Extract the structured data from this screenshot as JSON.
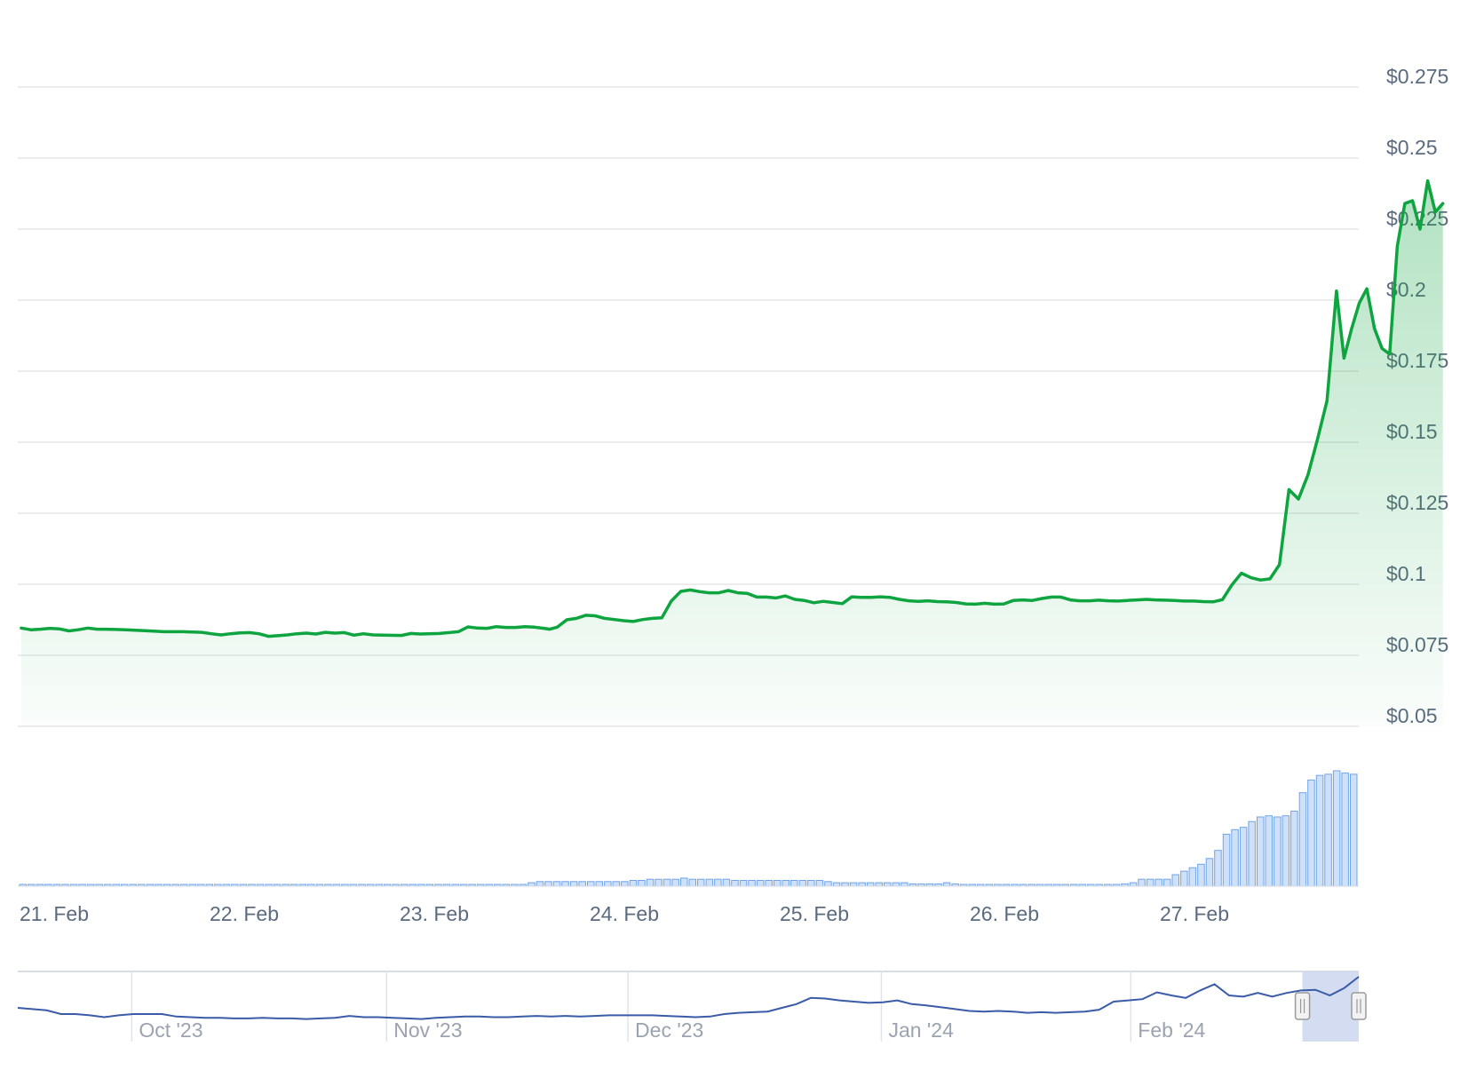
{
  "chart_data": {
    "type": "area",
    "y_axis": {
      "ticks": [
        "$0.275",
        "$0.25",
        "$0.225",
        "$0.2",
        "$0.175",
        "$0.15",
        "$0.125",
        "$0.1",
        "$0.075",
        "$0.05"
      ],
      "tick_values": [
        0.275,
        0.25,
        0.225,
        0.2,
        0.175,
        0.15,
        0.125,
        0.1,
        0.075,
        0.05
      ],
      "range": [
        0.05,
        0.275
      ],
      "position": "right",
      "grid": true
    },
    "x_axis": {
      "ticks": [
        "21. Feb",
        "22. Feb",
        "23. Feb",
        "24. Feb",
        "25. Feb",
        "26. Feb",
        "27. Feb"
      ],
      "tick_values": [
        0,
        1,
        2,
        3,
        4,
        5,
        6
      ],
      "range_days": [
        0,
        7.1
      ]
    },
    "colors": {
      "line": "#0ea43f",
      "area_top": "#0ea43f",
      "volume_fill": "#cfe1f9",
      "volume_stroke": "#6fa4e6",
      "grid": "#e6e6e6",
      "axis_text": "#5b6b7f",
      "navigator_line": "#3a5ba8",
      "navigator_mask": "#ccd6ee"
    },
    "price_series": [
      [
        0.0,
        0.0846
      ],
      [
        0.05,
        0.084
      ],
      [
        0.1,
        0.0842
      ],
      [
        0.15,
        0.0845
      ],
      [
        0.2,
        0.0843
      ],
      [
        0.25,
        0.0836
      ],
      [
        0.3,
        0.084
      ],
      [
        0.35,
        0.0846
      ],
      [
        0.4,
        0.0842
      ],
      [
        0.45,
        0.0842
      ],
      [
        0.55,
        0.084
      ],
      [
        0.65,
        0.0837
      ],
      [
        0.75,
        0.0833
      ],
      [
        0.85,
        0.0833
      ],
      [
        0.95,
        0.0831
      ],
      [
        1.0,
        0.0826
      ],
      [
        1.05,
        0.0822
      ],
      [
        1.1,
        0.0826
      ],
      [
        1.15,
        0.0829
      ],
      [
        1.2,
        0.083
      ],
      [
        1.25,
        0.0826
      ],
      [
        1.3,
        0.0817
      ],
      [
        1.35,
        0.0819
      ],
      [
        1.4,
        0.0822
      ],
      [
        1.45,
        0.0826
      ],
      [
        1.5,
        0.0828
      ],
      [
        1.55,
        0.0825
      ],
      [
        1.6,
        0.0831
      ],
      [
        1.65,
        0.0828
      ],
      [
        1.7,
        0.083
      ],
      [
        1.75,
        0.0821
      ],
      [
        1.8,
        0.0826
      ],
      [
        1.85,
        0.0822
      ],
      [
        1.9,
        0.0821
      ],
      [
        2.0,
        0.082
      ],
      [
        2.05,
        0.0827
      ],
      [
        2.1,
        0.0825
      ],
      [
        2.2,
        0.0827
      ],
      [
        2.25,
        0.083
      ],
      [
        2.3,
        0.0833
      ],
      [
        2.35,
        0.085
      ],
      [
        2.4,
        0.0846
      ],
      [
        2.45,
        0.0845
      ],
      [
        2.5,
        0.0851
      ],
      [
        2.55,
        0.0848
      ],
      [
        2.6,
        0.0848
      ],
      [
        2.65,
        0.0851
      ],
      [
        2.7,
        0.0849
      ],
      [
        2.75,
        0.0845
      ],
      [
        2.78,
        0.0842
      ],
      [
        2.82,
        0.0849
      ],
      [
        2.87,
        0.0875
      ],
      [
        2.92,
        0.088
      ],
      [
        2.97,
        0.0891
      ],
      [
        3.02,
        0.0889
      ],
      [
        3.07,
        0.088
      ],
      [
        3.12,
        0.0876
      ],
      [
        3.17,
        0.0872
      ],
      [
        3.22,
        0.0869
      ],
      [
        3.27,
        0.0876
      ],
      [
        3.32,
        0.088
      ],
      [
        3.37,
        0.0882
      ],
      [
        3.42,
        0.0941
      ],
      [
        3.47,
        0.0975
      ],
      [
        3.52,
        0.098
      ],
      [
        3.57,
        0.0974
      ],
      [
        3.62,
        0.097
      ],
      [
        3.67,
        0.097
      ],
      [
        3.72,
        0.0978
      ],
      [
        3.77,
        0.097
      ],
      [
        3.82,
        0.0968
      ],
      [
        3.87,
        0.0955
      ],
      [
        3.92,
        0.0955
      ],
      [
        3.97,
        0.0952
      ],
      [
        4.02,
        0.0959
      ],
      [
        4.07,
        0.0947
      ],
      [
        4.12,
        0.0943
      ],
      [
        4.17,
        0.0935
      ],
      [
        4.22,
        0.094
      ],
      [
        4.27,
        0.0936
      ],
      [
        4.32,
        0.0932
      ],
      [
        4.37,
        0.0956
      ],
      [
        4.42,
        0.0954
      ],
      [
        4.47,
        0.0954
      ],
      [
        4.52,
        0.0956
      ],
      [
        4.57,
        0.0954
      ],
      [
        4.62,
        0.0947
      ],
      [
        4.67,
        0.0942
      ],
      [
        4.72,
        0.094
      ],
      [
        4.77,
        0.0942
      ],
      [
        4.82,
        0.0939
      ],
      [
        4.87,
        0.0938
      ],
      [
        4.92,
        0.0936
      ],
      [
        4.97,
        0.0931
      ],
      [
        5.02,
        0.093
      ],
      [
        5.07,
        0.0933
      ],
      [
        5.12,
        0.093
      ],
      [
        5.17,
        0.0931
      ],
      [
        5.22,
        0.0943
      ],
      [
        5.27,
        0.0945
      ],
      [
        5.32,
        0.0943
      ],
      [
        5.37,
        0.095
      ],
      [
        5.42,
        0.0955
      ],
      [
        5.47,
        0.0955
      ],
      [
        5.52,
        0.0945
      ],
      [
        5.57,
        0.0942
      ],
      [
        5.62,
        0.0942
      ],
      [
        5.67,
        0.0944
      ],
      [
        5.72,
        0.0942
      ],
      [
        5.77,
        0.0941
      ],
      [
        5.82,
        0.0943
      ],
      [
        5.87,
        0.0945
      ],
      [
        5.92,
        0.0947
      ],
      [
        5.97,
        0.0945
      ],
      [
        6.02,
        0.0944
      ],
      [
        6.07,
        0.0943
      ],
      [
        6.12,
        0.0941
      ],
      [
        6.17,
        0.0941
      ],
      [
        6.22,
        0.0939
      ],
      [
        6.27,
        0.0938
      ],
      [
        6.32,
        0.0946
      ],
      [
        6.37,
        0.0998
      ],
      [
        6.42,
        0.1039
      ],
      [
        6.47,
        0.1023
      ],
      [
        6.52,
        0.1015
      ],
      [
        6.57,
        0.1019
      ],
      [
        6.62,
        0.1069
      ],
      [
        6.67,
        0.1333
      ],
      [
        6.72,
        0.13
      ],
      [
        6.77,
        0.1385
      ],
      [
        6.82,
        0.151
      ],
      [
        6.87,
        0.1645
      ],
      [
        6.92,
        0.2032
      ],
      [
        6.96,
        0.1796
      ],
      [
        7.0,
        0.19
      ],
      [
        7.04,
        0.199
      ],
      [
        7.08,
        0.204
      ],
      [
        7.12,
        0.19
      ],
      [
        7.16,
        0.183
      ],
      [
        7.2,
        0.181
      ],
      [
        7.24,
        0.219
      ],
      [
        7.28,
        0.234
      ],
      [
        7.32,
        0.235
      ],
      [
        7.36,
        0.225
      ],
      [
        7.4,
        0.242
      ],
      [
        7.44,
        0.231
      ],
      [
        7.48,
        0.234
      ]
    ],
    "volume_relative": [
      0.01,
      0.01,
      0.01,
      0.01,
      0.01,
      0.01,
      0.01,
      0.01,
      0.01,
      0.01,
      0.01,
      0.01,
      0.01,
      0.01,
      0.01,
      0.0,
      0.0,
      0.0,
      0.0,
      0.0,
      0.0,
      0.0,
      0.0,
      0.0,
      0.0,
      0.0,
      0.0,
      0.0,
      0.0,
      0.0,
      0.0,
      0.0,
      0.01,
      0.01,
      0.01,
      0.01,
      0.01,
      0.01,
      0.01,
      0.01,
      0.01,
      0.01,
      0.01,
      0.01,
      0.01,
      0.01,
      0.01,
      0.01,
      0.01,
      0.01,
      0.01,
      0.01,
      0.01,
      0.01,
      0.01,
      0.01,
      0.01,
      0.01,
      0.01,
      0.01,
      0.03,
      0.04,
      0.04,
      0.04,
      0.04,
      0.04,
      0.04,
      0.04,
      0.04,
      0.04,
      0.04,
      0.04,
      0.05,
      0.05,
      0.06,
      0.06,
      0.06,
      0.06,
      0.07,
      0.06,
      0.06,
      0.06,
      0.06,
      0.06,
      0.05,
      0.05,
      0.05,
      0.05,
      0.05,
      0.05,
      0.05,
      0.05,
      0.05,
      0.05,
      0.05,
      0.04,
      0.03,
      0.03,
      0.03,
      0.03,
      0.03,
      0.03,
      0.03,
      0.03,
      0.03,
      0.02,
      0.02,
      0.02,
      0.02,
      0.03,
      0.02,
      0.01,
      0.01,
      0.01,
      0.01,
      0.01,
      0.01,
      0.01,
      0.01,
      0.01,
      0.01,
      0.01,
      0.01,
      0.01,
      0.01,
      0.01,
      0.01,
      0.01,
      0.01,
      0.01,
      0.02,
      0.03,
      0.06,
      0.06,
      0.06,
      0.06,
      0.1,
      0.13,
      0.16,
      0.19,
      0.24,
      0.31,
      0.45,
      0.49,
      0.51,
      0.56,
      0.6,
      0.61,
      0.6,
      0.61,
      0.65,
      0.81,
      0.92,
      0.96,
      0.97,
      1.0,
      0.98,
      0.97
    ],
    "navigator": {
      "labels": [
        "Oct '23",
        "Nov '23",
        "Dec '23",
        "Jan '24",
        "Feb '24"
      ],
      "label_positions": [
        0.085,
        0.275,
        0.455,
        0.644,
        0.83
      ],
      "series": [
        0.5,
        0.48,
        0.46,
        0.4,
        0.4,
        0.38,
        0.35,
        0.38,
        0.4,
        0.4,
        0.4,
        0.36,
        0.35,
        0.34,
        0.34,
        0.33,
        0.33,
        0.34,
        0.33,
        0.33,
        0.32,
        0.33,
        0.34,
        0.37,
        0.35,
        0.35,
        0.34,
        0.33,
        0.32,
        0.34,
        0.35,
        0.36,
        0.36,
        0.35,
        0.35,
        0.36,
        0.37,
        0.36,
        0.37,
        0.36,
        0.37,
        0.38,
        0.38,
        0.38,
        0.38,
        0.37,
        0.36,
        0.35,
        0.36,
        0.4,
        0.42,
        0.43,
        0.44,
        0.5,
        0.56,
        0.66,
        0.65,
        0.62,
        0.6,
        0.58,
        0.59,
        0.62,
        0.56,
        0.54,
        0.51,
        0.48,
        0.45,
        0.44,
        0.45,
        0.44,
        0.42,
        0.43,
        0.42,
        0.43,
        0.44,
        0.47,
        0.6,
        0.62,
        0.64,
        0.75,
        0.7,
        0.66,
        0.78,
        0.88,
        0.7,
        0.68,
        0.74,
        0.68,
        0.74,
        0.78,
        0.79,
        0.7,
        0.82,
        1.0
      ],
      "selected_range": [
        0.958,
        1.0
      ]
    }
  }
}
